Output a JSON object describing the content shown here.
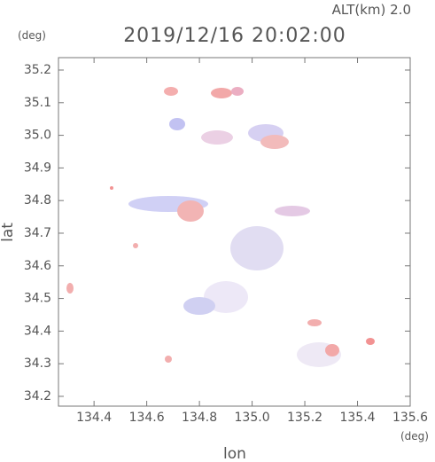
{
  "chart_data": {
    "type": "radar-map",
    "title": "2019/12/16 20:02:00",
    "subtitle": "ALT(km)  2.0",
    "x_label": "lon",
    "y_label": "lat",
    "x_unit": "(deg)",
    "y_unit": "(deg)",
    "xlim": [
      134.265,
      135.6
    ],
    "ylim": [
      34.17,
      35.238
    ],
    "xticks": [
      134.4,
      134.6,
      134.8,
      {
        "value": 135.0,
        "label": "135.0"
      },
      135.2,
      135.4,
      135.6
    ],
    "yticks": [
      34.2,
      34.3,
      34.4,
      34.5,
      34.6,
      34.7,
      34.8,
      34.9,
      {
        "value": 35.0,
        "label": "35.0"
      },
      35.1,
      35.2
    ]
  }
}
